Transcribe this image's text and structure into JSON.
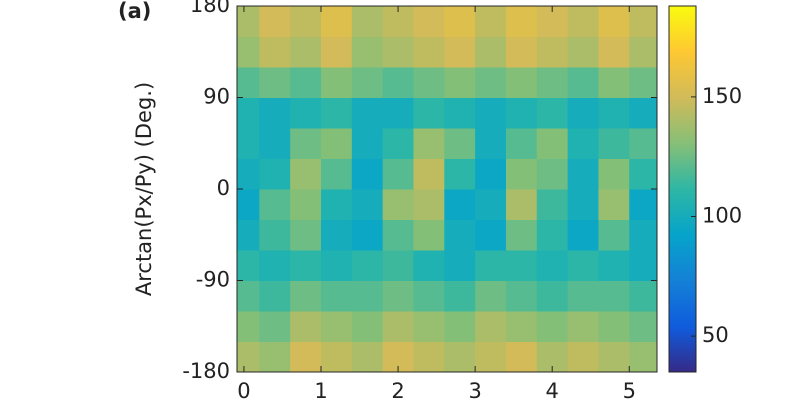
{
  "chart_data": {
    "type": "heatmap",
    "panel_label": "(a)",
    "ylabel": "Arctan(Px/Py) (Deg.)",
    "x": [
      0.0,
      0.4,
      0.8,
      1.2,
      1.6,
      2.0,
      2.4,
      2.8,
      3.2,
      3.6,
      4.0,
      4.4,
      4.8,
      5.2
    ],
    "y": [
      -165,
      -135,
      -105,
      -75,
      -45,
      -15,
      15,
      45,
      75,
      105,
      135,
      165
    ],
    "z": [
      [
        140,
        135,
        150,
        145,
        140,
        150,
        145,
        140,
        145,
        150,
        140,
        145,
        140,
        135
      ],
      [
        130,
        125,
        140,
        135,
        130,
        140,
        135,
        130,
        140,
        135,
        130,
        135,
        130,
        125
      ],
      [
        120,
        115,
        125,
        120,
        120,
        125,
        120,
        115,
        125,
        120,
        115,
        120,
        120,
        115
      ],
      [
        110,
        105,
        110,
        105,
        110,
        115,
        105,
        100,
        110,
        110,
        105,
        110,
        105,
        100
      ],
      [
        100,
        115,
        125,
        100,
        95,
        120,
        130,
        100,
        95,
        125,
        110,
        95,
        120,
        100
      ],
      [
        95,
        120,
        130,
        105,
        100,
        135,
        140,
        95,
        100,
        140,
        115,
        100,
        135,
        95
      ],
      [
        100,
        105,
        135,
        120,
        95,
        120,
        145,
        110,
        95,
        130,
        125,
        100,
        130,
        110
      ],
      [
        105,
        100,
        125,
        130,
        100,
        110,
        135,
        125,
        100,
        120,
        130,
        105,
        115,
        120
      ],
      [
        105,
        100,
        105,
        110,
        100,
        100,
        110,
        105,
        100,
        105,
        110,
        100,
        105,
        100
      ],
      [
        120,
        125,
        120,
        130,
        125,
        120,
        125,
        130,
        125,
        130,
        125,
        120,
        130,
        125
      ],
      [
        135,
        145,
        140,
        150,
        135,
        140,
        145,
        150,
        140,
        150,
        145,
        140,
        150,
        140
      ],
      [
        140,
        150,
        145,
        155,
        140,
        145,
        150,
        155,
        145,
        155,
        150,
        145,
        155,
        145
      ]
    ],
    "xlim": [
      -0.09,
      5.36
    ],
    "xticks": [
      0,
      1,
      2,
      3,
      4,
      5
    ],
    "ylim": [
      -180,
      180
    ],
    "yticks": [
      -180,
      -90,
      0,
      90,
      180
    ],
    "clim": [
      35,
      188
    ],
    "cticks": [
      50,
      100,
      150
    ],
    "colormap": [
      "#352a87",
      "#0f5cdd",
      "#1481d6",
      "#06a4ca",
      "#2eb7a4",
      "#87bf77",
      "#d1bb59",
      "#fec832",
      "#f9fb0e"
    ]
  }
}
